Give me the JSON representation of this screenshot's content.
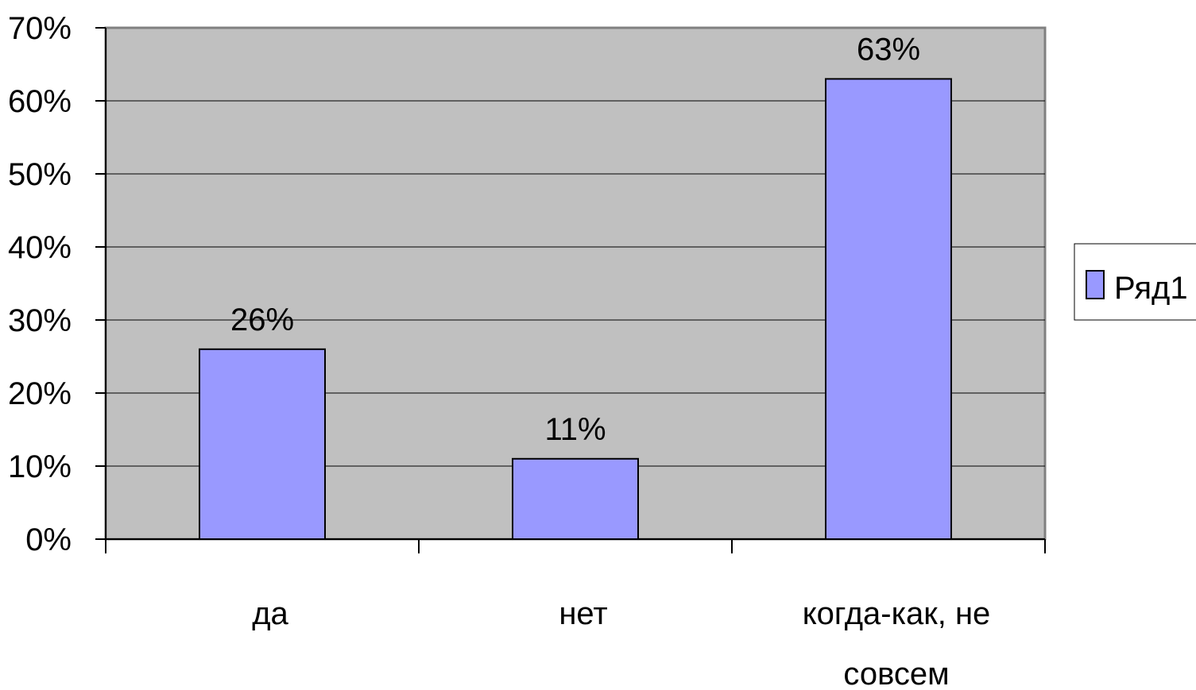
{
  "chart_data": {
    "type": "bar",
    "categories": [
      [
        "да"
      ],
      [
        "нет"
      ],
      [
        "когда-как, не",
        "совсем"
      ]
    ],
    "series": [
      {
        "name": "Ряд1",
        "values": [
          26,
          11,
          63
        ]
      }
    ],
    "data_labels": [
      "26%",
      "11%",
      "63%"
    ],
    "y_ticks": [
      "0%",
      "10%",
      "20%",
      "30%",
      "40%",
      "50%",
      "60%",
      "70%"
    ],
    "ylim": [
      0,
      70
    ],
    "y_tick_step": 10,
    "grid": true,
    "legend": "right",
    "colors": {
      "bar_fill": "#9999ff",
      "bar_stroke": "#000000",
      "plot_background": "#c0c0c0",
      "plot_border": "#808080",
      "gridline": "#000000"
    }
  }
}
